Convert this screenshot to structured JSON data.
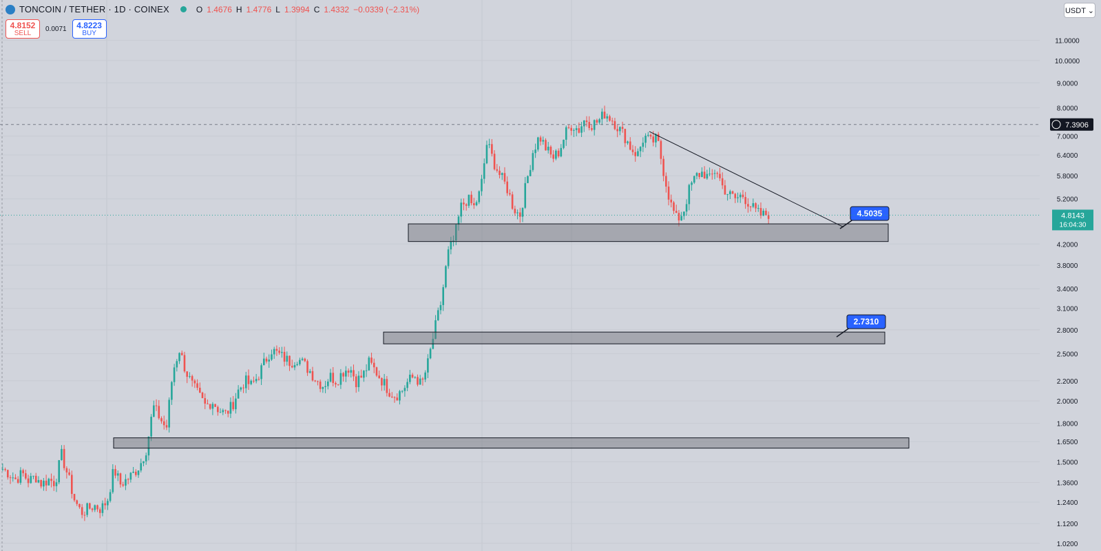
{
  "header": {
    "symbol": "TONCOIN / TETHER · 1D · COINEX",
    "ohlc": [
      {
        "k": "O",
        "v": "1.4676"
      },
      {
        "k": "H",
        "v": "1.4776"
      },
      {
        "k": "L",
        "v": "1.3994"
      },
      {
        "k": "C",
        "v": "1.4332"
      },
      {
        "k": "",
        "v": "−0.0339 (−2.31%)"
      }
    ]
  },
  "trade": {
    "sell_price": "4.8152",
    "sell_label": "SELL",
    "spread": "0.0071",
    "buy_price": "4.8223",
    "buy_label": "BUY"
  },
  "currency_label": "USDT",
  "colors": {
    "up": "#26a69a",
    "down": "#ef5350",
    "accent": "#2962ff",
    "bg": "#d1d4dc"
  },
  "chart_data": {
    "type": "candlestick",
    "title": "TONCOIN / TETHER · 1D · COINEX",
    "yscale": "log",
    "ylim": [
      1.0,
      11.5
    ],
    "y_ticks": [
      "11.0000",
      "10.0000",
      "9.0000",
      "8.0000",
      "7.0000",
      "6.4000",
      "5.8000",
      "5.2000",
      "4.2000",
      "3.8000",
      "3.4000",
      "3.1000",
      "2.8000",
      "2.5000",
      "2.2000",
      "2.0000",
      "1.8000",
      "1.6500",
      "1.5000",
      "1.3600",
      "1.2400",
      "1.1200",
      "1.0200"
    ],
    "price_path": [
      1.45,
      1.42,
      1.38,
      1.42,
      1.37,
      1.4,
      1.35,
      1.38,
      1.36,
      1.55,
      1.4,
      1.25,
      1.18,
      1.2,
      1.22,
      1.2,
      1.25,
      1.45,
      1.35,
      1.38,
      1.42,
      1.48,
      1.6,
      1.95,
      1.85,
      1.75,
      2.3,
      2.55,
      2.3,
      2.15,
      2.05,
      1.95,
      2.0,
      1.92,
      1.88,
      1.95,
      2.1,
      2.2,
      2.15,
      2.25,
      2.4,
      2.55,
      2.5,
      2.45,
      2.4,
      2.45,
      2.38,
      2.3,
      2.2,
      2.15,
      2.25,
      2.2,
      2.3,
      2.35,
      2.2,
      2.25,
      2.4,
      2.3,
      2.2,
      2.1,
      2.05,
      2.1,
      2.2,
      2.25,
      2.15,
      2.4,
      2.8,
      3.2,
      4.0,
      4.3,
      5.0,
      5.2,
      5.0,
      5.4,
      6.8,
      6.2,
      5.8,
      5.5,
      5.0,
      4.8,
      5.6,
      6.5,
      7.0,
      6.6,
      6.3,
      6.5,
      7.1,
      7.4,
      7.2,
      7.6,
      7.4,
      7.5,
      7.8,
      7.6,
      7.3,
      7.0,
      6.6,
      6.4,
      7.0,
      6.8,
      6.9,
      5.9,
      5.1,
      4.7,
      4.9,
      5.5,
      5.8,
      5.9,
      5.7,
      6.0,
      5.5,
      5.3,
      5.2,
      5.3,
      5.1,
      4.9,
      4.8,
      4.85
    ],
    "last_price": "4.8143",
    "countdown": "16:04:30",
    "crosshair_price": "7.3906",
    "zones": [
      {
        "low": 4.25,
        "high": 4.62,
        "label": "4.5035"
      },
      {
        "low": 2.62,
        "high": 2.77,
        "label": "2.7310"
      },
      {
        "low": 1.6,
        "high": 1.68,
        "label": ""
      }
    ],
    "trendline": [
      {
        "index": 100,
        "price": 7.15
      },
      {
        "index": 128,
        "price": 4.55
      }
    ],
    "grid": true
  }
}
